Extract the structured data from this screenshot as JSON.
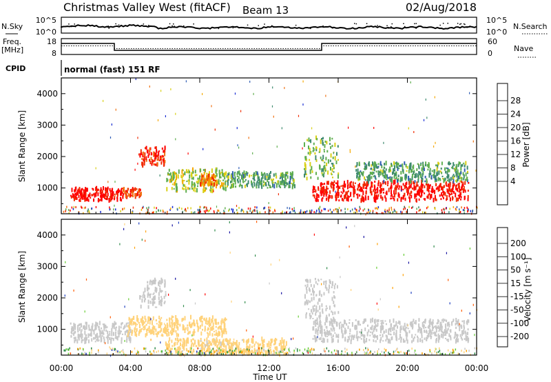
{
  "header": {
    "station": "Christmas Valley West (fitACF)",
    "beam": "Beam 13",
    "date": "02/Aug/2018"
  },
  "noise_panel": {
    "left_label": "N.Sky",
    "right_label": "N.Search",
    "left_ticks": [
      "10^5",
      "10^0"
    ],
    "right_ticks": [
      "10^5",
      "10^0"
    ]
  },
  "freq_panel": {
    "left_label_1": "Freq.",
    "left_label_2": "[MHz]",
    "right_label": "Nave",
    "left_ticks": [
      "18",
      "8"
    ],
    "right_ticks": [
      "60",
      "0"
    ]
  },
  "cpid": {
    "label": "CPID",
    "value": "normal (fast) 151 RF"
  },
  "x_axis": {
    "label": "Time UT",
    "ticks": [
      "00:00",
      "04:00",
      "08:00",
      "12:00",
      "16:00",
      "20:00",
      "00:00"
    ]
  },
  "power_panel": {
    "ylabel": "Slant Range [km]",
    "yticks": [
      "4000",
      "3000",
      "2000",
      "1000"
    ],
    "colorbar_label": "Power [dB]",
    "colorbar_ticks": [
      "28",
      "24",
      "20",
      "16",
      "12",
      "8",
      "4"
    ]
  },
  "velocity_panel": {
    "ylabel": "Slant Range [km]",
    "yticks": [
      "4000",
      "3000",
      "2000",
      "1000"
    ],
    "colorbar_label": "Velocity [m s⁻¹]",
    "colorbar_ticks": [
      "200",
      "100",
      "50",
      "15",
      "-15",
      "-50",
      "-100",
      "-200"
    ]
  },
  "colors": {
    "power_scale": [
      "#1428d2",
      "#2e5cb4",
      "#3e8a6e",
      "#5fae4e",
      "#d8d016",
      "#f5a800",
      "#f07010",
      "#f02a00",
      "#ff0000"
    ],
    "velocity_scale": [
      "#ff0000",
      "#ff5a00",
      "#ffa000",
      "#ffd27a",
      "#c8c8c8",
      "#66cc33",
      "#2f8a4a",
      "#1f3fbf",
      "#1410a0"
    ]
  },
  "chart_data": [
    {
      "type": "heatmap",
      "name": "Power",
      "x": "time UT hours 0-24",
      "y": "slant range km",
      "xlim": [
        0,
        24
      ],
      "ylim": [
        180,
        4500
      ],
      "zlim": [
        0,
        30
      ],
      "features": [
        {
          "t_start": 0.5,
          "t_end": 3.5,
          "r_start": 600,
          "r_end": 1000,
          "power": 28
        },
        {
          "t_start": 3.5,
          "t_end": 4.6,
          "r_start": 700,
          "r_end": 1000,
          "power": 24
        },
        {
          "t_start": 4.5,
          "t_end": 6.0,
          "r_start": 1700,
          "r_end": 2300,
          "power": 26
        },
        {
          "t_start": 6.0,
          "t_end": 9.5,
          "r_start": 900,
          "r_end": 1600,
          "power": 14
        },
        {
          "t_start": 8.0,
          "t_end": 9.0,
          "r_start": 1100,
          "r_end": 1400,
          "power": 22
        },
        {
          "t_start": 9.5,
          "t_end": 13.5,
          "r_start": 1000,
          "r_end": 1500,
          "power": 10
        },
        {
          "t_start": 14.5,
          "t_end": 23.5,
          "r_start": 600,
          "r_end": 1200,
          "power": 28
        },
        {
          "t_start": 14.0,
          "t_end": 16.0,
          "r_start": 1300,
          "r_end": 2600,
          "power": 12
        },
        {
          "t_start": 17.0,
          "t_end": 23.5,
          "r_start": 1200,
          "r_end": 1800,
          "power": 10
        }
      ]
    },
    {
      "type": "heatmap",
      "name": "Velocity",
      "x": "time UT hours 0-24",
      "y": "slant range km",
      "xlim": [
        0,
        24
      ],
      "ylim": [
        180,
        4500
      ],
      "zlim": [
        -250,
        250
      ],
      "features": [
        {
          "t_start": 0.5,
          "t_end": 4.0,
          "r_start": 600,
          "r_end": 1200,
          "velocity": 0
        },
        {
          "t_start": 3.8,
          "t_end": 9.5,
          "r_start": 800,
          "r_end": 1400,
          "velocity": -60
        },
        {
          "t_start": 4.5,
          "t_end": 6.0,
          "r_start": 1700,
          "r_end": 2600,
          "velocity": 0
        },
        {
          "t_start": 6.0,
          "t_end": 13.0,
          "r_start": 200,
          "r_end": 700,
          "velocity": -40
        },
        {
          "t_start": 14.5,
          "t_end": 23.5,
          "r_start": 600,
          "r_end": 1300,
          "velocity": 0
        },
        {
          "t_start": 14.0,
          "t_end": 16.0,
          "r_start": 1300,
          "r_end": 2600,
          "velocity": 0
        }
      ]
    }
  ]
}
